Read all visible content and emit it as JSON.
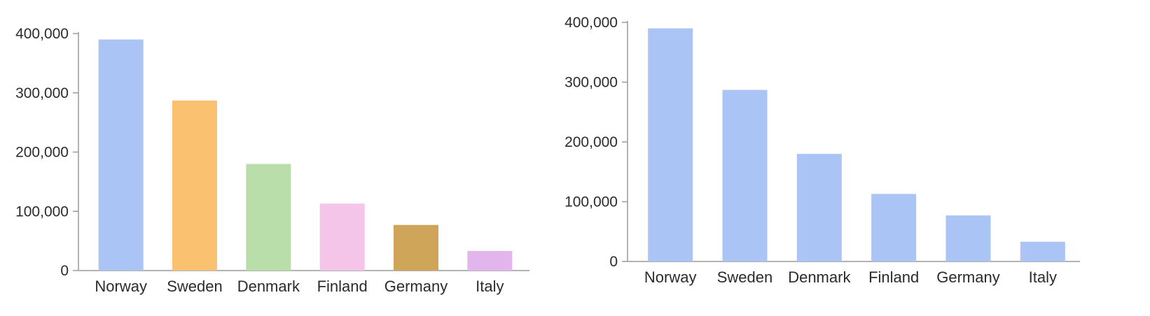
{
  "chart_data": [
    {
      "type": "bar",
      "title": "",
      "xlabel": "",
      "ylabel": "",
      "categories": [
        "Norway",
        "Sweden",
        "Denmark",
        "Finland",
        "Germany",
        "Italy"
      ],
      "values": [
        390000,
        287000,
        180000,
        113000,
        77000,
        33000
      ],
      "ylim": [
        0,
        400000
      ],
      "yticks": [
        0,
        100000,
        200000,
        300000,
        400000
      ],
      "ytick_labels": [
        "0",
        "100,000",
        "200,000",
        "300,000",
        "400,000"
      ],
      "grid": false,
      "legend": "none",
      "colors": [
        "#a9c4f5",
        "#f9c170",
        "#b9deaa",
        "#f5c4e9",
        "#cfa55a",
        "#e2b6ec"
      ]
    },
    {
      "type": "bar",
      "title": "",
      "xlabel": "",
      "ylabel": "",
      "categories": [
        "Norway",
        "Sweden",
        "Denmark",
        "Finland",
        "Germany",
        "Italy"
      ],
      "values": [
        390000,
        287000,
        180000,
        113000,
        77000,
        33000
      ],
      "ylim": [
        0,
        400000
      ],
      "yticks": [
        0,
        100000,
        200000,
        300000,
        400000
      ],
      "ytick_labels": [
        "0",
        "100,000",
        "200,000",
        "300,000",
        "400,000"
      ],
      "grid": false,
      "legend": "none",
      "colors": [
        "#a9c4f5",
        "#a9c4f5",
        "#a9c4f5",
        "#a9c4f5",
        "#a9c4f5",
        "#a9c4f5"
      ]
    }
  ]
}
